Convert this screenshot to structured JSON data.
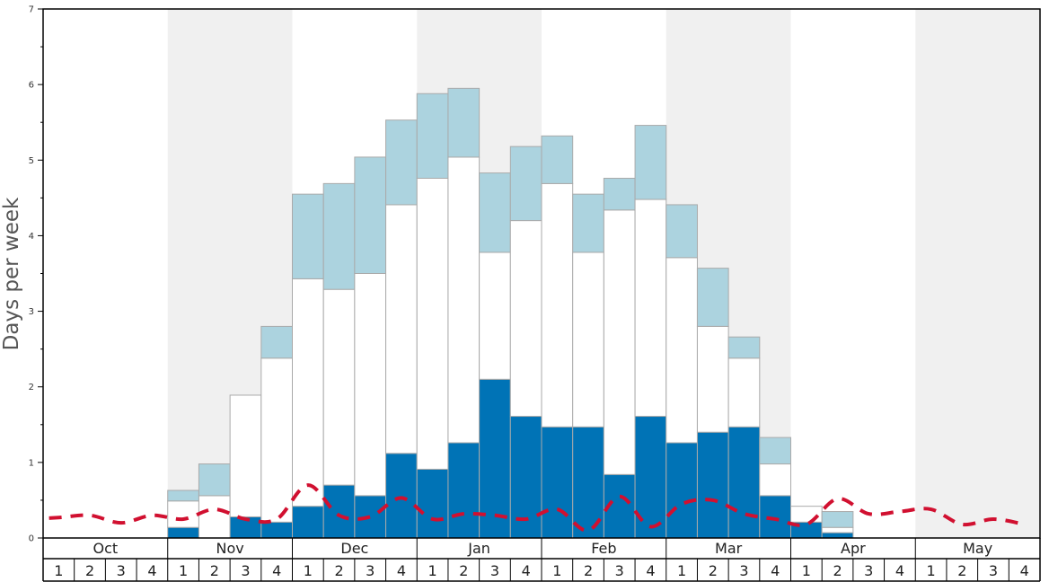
{
  "chart_data": {
    "type": "bar",
    "title": "",
    "xlabel": "",
    "ylabel": "Days per week",
    "ylim": [
      0,
      7
    ],
    "yticks": [
      0,
      1,
      2,
      3,
      4,
      5,
      6,
      7
    ],
    "grid": false,
    "months": [
      "Oct",
      "Nov",
      "Dec",
      "Jan",
      "Feb",
      "Mar",
      "Apr",
      "May"
    ],
    "week_labels": [
      "1",
      "2",
      "3",
      "4"
    ],
    "colors": {
      "dark": "#0073b6",
      "white": "#ffffff",
      "light": "#acd3df",
      "line": "#d11030",
      "band": "#f0f0f0",
      "bar_border": "#aaaaaa"
    },
    "stack_order": [
      "dark",
      "white",
      "light"
    ],
    "weeks": [
      {
        "month": "Oct",
        "week": "1",
        "dark": 0,
        "white": 0,
        "light": 0
      },
      {
        "month": "Oct",
        "week": "2",
        "dark": 0,
        "white": 0,
        "light": 0
      },
      {
        "month": "Oct",
        "week": "3",
        "dark": 0,
        "white": 0,
        "light": 0
      },
      {
        "month": "Oct",
        "week": "4",
        "dark": 0,
        "white": 0,
        "light": 0
      },
      {
        "month": "Nov",
        "week": "1",
        "dark": 0.14,
        "white": 0.35,
        "light": 0.14
      },
      {
        "month": "Nov",
        "week": "2",
        "dark": 0,
        "white": 0.56,
        "light": 0.42
      },
      {
        "month": "Nov",
        "week": "3",
        "dark": 0.28,
        "white": 1.61,
        "light": 0
      },
      {
        "month": "Nov",
        "week": "4",
        "dark": 0.21,
        "white": 2.17,
        "light": 0.42
      },
      {
        "month": "Dec",
        "week": "1",
        "dark": 0.42,
        "white": 3.01,
        "light": 1.12
      },
      {
        "month": "Dec",
        "week": "2",
        "dark": 0.7,
        "white": 2.59,
        "light": 1.4
      },
      {
        "month": "Dec",
        "week": "3",
        "dark": 0.56,
        "white": 2.94,
        "light": 1.54
      },
      {
        "month": "Dec",
        "week": "4",
        "dark": 1.12,
        "white": 3.29,
        "light": 1.12
      },
      {
        "month": "Jan",
        "week": "1",
        "dark": 0.91,
        "white": 3.85,
        "light": 1.12
      },
      {
        "month": "Jan",
        "week": "2",
        "dark": 1.26,
        "white": 3.78,
        "light": 0.91
      },
      {
        "month": "Jan",
        "week": "3",
        "dark": 2.1,
        "white": 1.68,
        "light": 1.05
      },
      {
        "month": "Jan",
        "week": "4",
        "dark": 1.61,
        "white": 2.59,
        "light": 0.98
      },
      {
        "month": "Feb",
        "week": "1",
        "dark": 1.47,
        "white": 3.22,
        "light": 0.63
      },
      {
        "month": "Feb",
        "week": "2",
        "dark": 1.47,
        "white": 2.31,
        "light": 0.77
      },
      {
        "month": "Feb",
        "week": "3",
        "dark": 0.84,
        "white": 3.5,
        "light": 0.42
      },
      {
        "month": "Feb",
        "week": "4",
        "dark": 1.61,
        "white": 2.87,
        "light": 0.98
      },
      {
        "month": "Mar",
        "week": "1",
        "dark": 1.26,
        "white": 2.45,
        "light": 0.7
      },
      {
        "month": "Mar",
        "week": "2",
        "dark": 1.4,
        "white": 1.4,
        "light": 0.77
      },
      {
        "month": "Mar",
        "week": "3",
        "dark": 1.47,
        "white": 0.91,
        "light": 0.28
      },
      {
        "month": "Mar",
        "week": "4",
        "dark": 0.56,
        "white": 0.42,
        "light": 0.35
      },
      {
        "month": "Apr",
        "week": "1",
        "dark": 0.21,
        "white": 0.21,
        "light": 0
      },
      {
        "month": "Apr",
        "week": "2",
        "dark": 0.07,
        "white": 0.07,
        "light": 0.21
      },
      {
        "month": "Apr",
        "week": "3",
        "dark": 0,
        "white": 0,
        "light": 0
      },
      {
        "month": "Apr",
        "week": "4",
        "dark": 0,
        "white": 0,
        "light": 0
      },
      {
        "month": "May",
        "week": "1",
        "dark": 0,
        "white": 0,
        "light": 0
      },
      {
        "month": "May",
        "week": "2",
        "dark": 0,
        "white": 0,
        "light": 0
      },
      {
        "month": "May",
        "week": "3",
        "dark": 0,
        "white": 0,
        "light": 0
      },
      {
        "month": "May",
        "week": "4",
        "dark": 0,
        "white": 0,
        "light": 0
      }
    ],
    "line_series": {
      "style": "dashed",
      "points": [
        {
          "w": -0.5,
          "y": 0.25
        },
        {
          "w": 0.5,
          "y": 0.27
        },
        {
          "w": 1.5,
          "y": 0.3
        },
        {
          "w": 2.5,
          "y": 0.2
        },
        {
          "w": 3.5,
          "y": 0.3
        },
        {
          "w": 4.5,
          "y": 0.25
        },
        {
          "w": 5.5,
          "y": 0.38
        },
        {
          "w": 6.5,
          "y": 0.25
        },
        {
          "w": 7.5,
          "y": 0.25
        },
        {
          "w": 8.5,
          "y": 0.7
        },
        {
          "w": 9.5,
          "y": 0.3
        },
        {
          "w": 10.5,
          "y": 0.28
        },
        {
          "w": 11.5,
          "y": 0.53
        },
        {
          "w": 12.5,
          "y": 0.25
        },
        {
          "w": 13.5,
          "y": 0.32
        },
        {
          "w": 14.5,
          "y": 0.3
        },
        {
          "w": 15.5,
          "y": 0.25
        },
        {
          "w": 16.5,
          "y": 0.38
        },
        {
          "w": 17.5,
          "y": 0.1
        },
        {
          "w": 18.5,
          "y": 0.55
        },
        {
          "w": 19.5,
          "y": 0.15
        },
        {
          "w": 20.5,
          "y": 0.45
        },
        {
          "w": 21.5,
          "y": 0.5
        },
        {
          "w": 22.5,
          "y": 0.32
        },
        {
          "w": 23.5,
          "y": 0.25
        },
        {
          "w": 24.5,
          "y": 0.18
        },
        {
          "w": 25.5,
          "y": 0.52
        },
        {
          "w": 26.5,
          "y": 0.32
        },
        {
          "w": 27.5,
          "y": 0.35
        },
        {
          "w": 28.5,
          "y": 0.38
        },
        {
          "w": 29.5,
          "y": 0.18
        },
        {
          "w": 30.5,
          "y": 0.25
        },
        {
          "w": 31.5,
          "y": 0.18
        }
      ]
    }
  }
}
